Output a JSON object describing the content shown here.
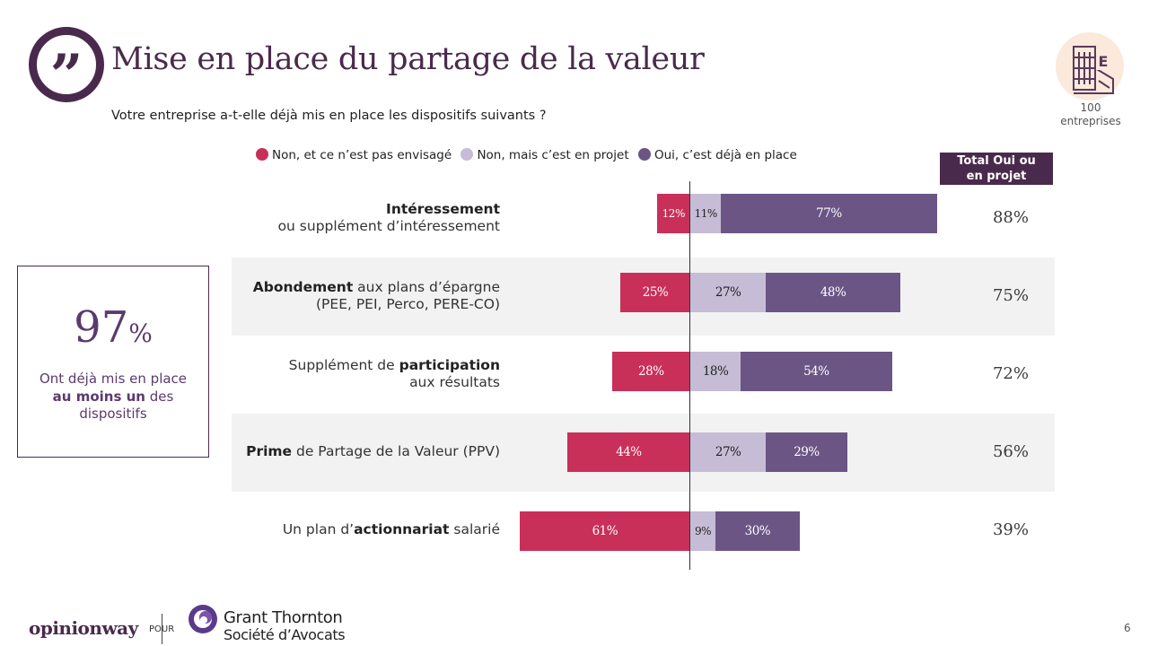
{
  "header": {
    "title": "Mise en place du partage de la valeur",
    "question": "Votre entreprise a-t-elle déjà mis en place les dispositifs suivants ?",
    "quote_icon": "quote-icon"
  },
  "sample": {
    "icon": "building-icon",
    "count": "100",
    "label": "entreprises"
  },
  "legend": [
    {
      "label": "Non, et ce n’est pas envisagé",
      "color": "#c8305a"
    },
    {
      "label": "Non, mais c’est en projet",
      "color": "#c6bcd6"
    },
    {
      "label": "Oui, c’est déjà en place",
      "color": "#6b5585"
    }
  ],
  "total_header": {
    "line1": "Total Oui ou",
    "line2": "en projet"
  },
  "highlight": {
    "value": "97",
    "unit": "%",
    "caption_part1": "Ont déjà mis en place",
    "caption_bold": "au moins un",
    "caption_part2": "des dispositifs"
  },
  "chart_data": {
    "type": "bar",
    "orientation": "horizontal-diverging",
    "title": "",
    "series": [
      {
        "name": "Non, et ce n’est pas envisagé",
        "color": "#c8305a",
        "values": [
          12,
          25,
          28,
          44,
          61
        ]
      },
      {
        "name": "Non, mais c’est en projet",
        "color": "#c6bcd6",
        "values": [
          11,
          27,
          18,
          27,
          9
        ]
      },
      {
        "name": "Oui, c’est déjà en place",
        "color": "#6b5585",
        "values": [
          77,
          48,
          54,
          29,
          30
        ]
      }
    ],
    "value_labels": [
      [
        "12%",
        "11%",
        "77%"
      ],
      [
        "25%",
        "27%",
        "48%"
      ],
      [
        "28%",
        "18%",
        "54%"
      ],
      [
        "44%",
        "27%",
        "29%"
      ],
      [
        "61%",
        "9%",
        "30%"
      ]
    ],
    "categories": [
      {
        "line1_bold": "Intéressement",
        "line1_rest": "",
        "line2": "ou supplément d’intéressement"
      },
      {
        "line1_bold": "Abondement",
        "line1_rest": " aux plans d’épargne",
        "line2": "(PEE, PEI, Perco, PERE-CO)"
      },
      {
        "line1_pre": "Supplément de ",
        "line1_bold": "participation",
        "line1_rest": "",
        "line2": "aux résultats"
      },
      {
        "line1_bold": "Prime",
        "line1_rest": " de Partage de la Valeur (PPV)",
        "line2": ""
      },
      {
        "line1_pre": "Un plan d’",
        "line1_bold": "actionnariat",
        "line1_rest": " salarié",
        "line2": ""
      }
    ],
    "totals": [
      "88%",
      "75%",
      "72%",
      "56%",
      "39%"
    ]
  },
  "footer": {
    "brand": "opinionway",
    "pour": "POUR",
    "partner_name": "Grant Thornton",
    "partner_sub": "Société d’Avocats",
    "page_number": "6"
  }
}
